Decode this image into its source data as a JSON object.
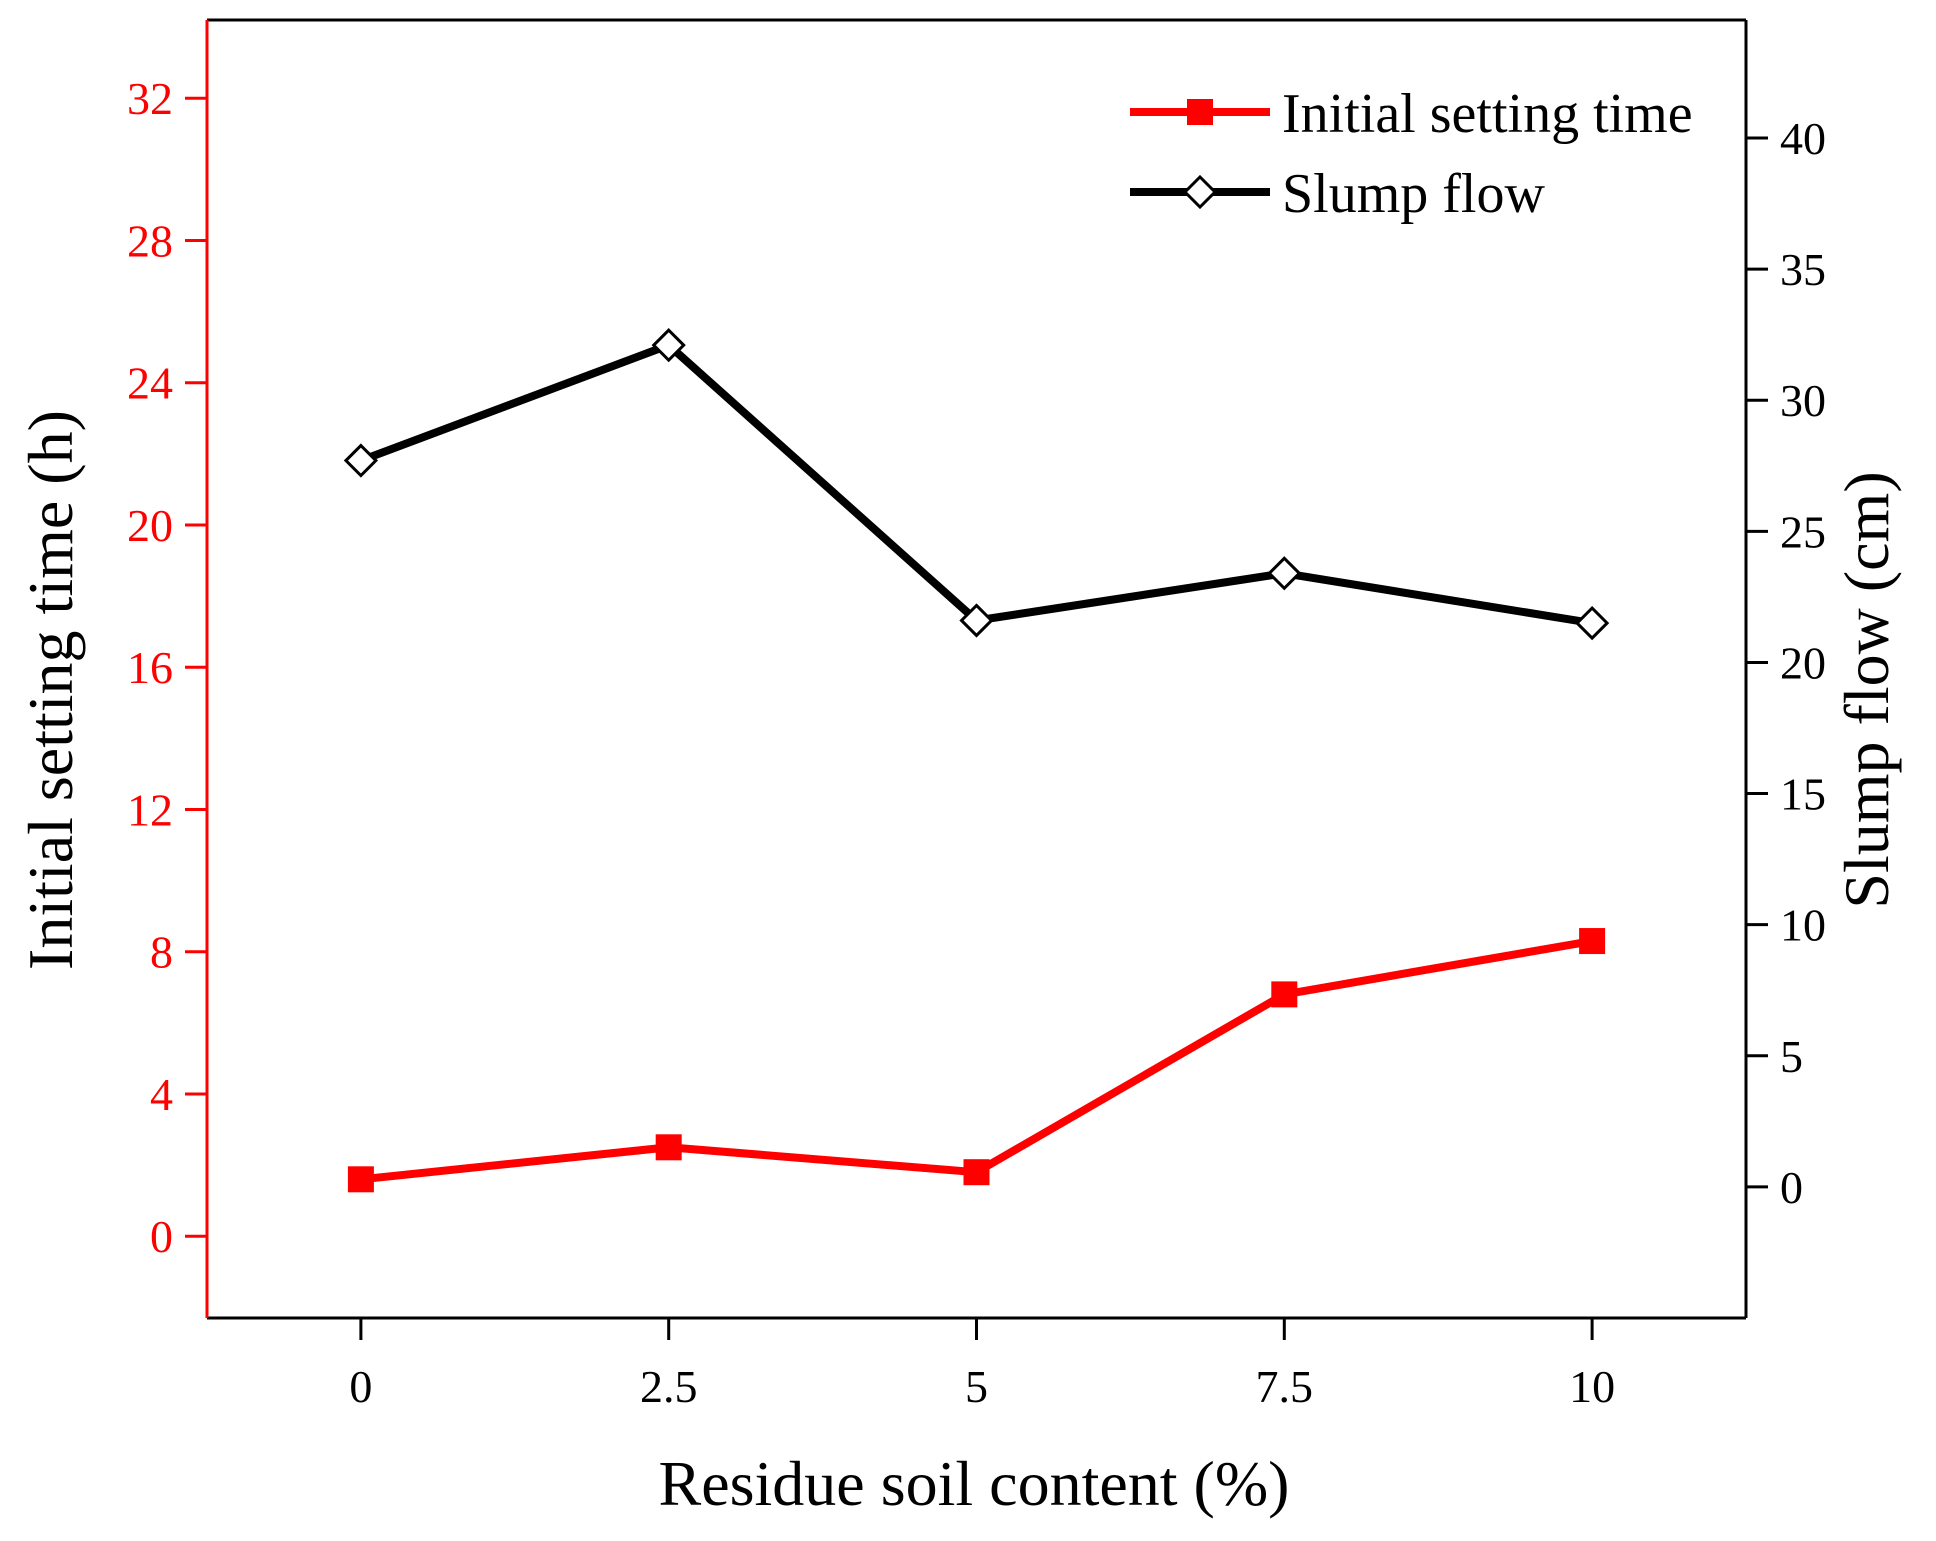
{
  "chart_data": {
    "type": "line",
    "title": "",
    "xlabel": "Residue soil content (%)",
    "ylabel_left": "Initial setting time (h)",
    "ylabel_right": "Slump flow (cm)",
    "x": [
      0,
      2.5,
      5,
      7.5,
      10
    ],
    "x_tick_labels": [
      "0",
      "2.5",
      "5",
      "7.5",
      "10"
    ],
    "xlim": [
      -1.25,
      11.25
    ],
    "ylim_left": [
      -2.3,
      34.2
    ],
    "ylim_right": [
      -5,
      44.5
    ],
    "y_left_ticks": [
      0,
      4,
      8,
      12,
      16,
      20,
      24,
      28,
      32
    ],
    "y_right_ticks": [
      0,
      5,
      10,
      15,
      20,
      25,
      30,
      35,
      40
    ],
    "legend_position": "top-right",
    "series": [
      {
        "name": "Initial setting time",
        "axis": "left",
        "marker": "filled-square",
        "color": "#ff0000",
        "values": [
          1.6,
          2.5,
          1.8,
          6.8,
          8.3
        ]
      },
      {
        "name": "Slump flow",
        "axis": "right",
        "marker": "open-diamond",
        "color": "#000000",
        "values": [
          27.7,
          32.1,
          21.6,
          23.4,
          21.5
        ]
      }
    ],
    "left_axis_color": "#ff0000",
    "right_axis_color": "#000000"
  }
}
